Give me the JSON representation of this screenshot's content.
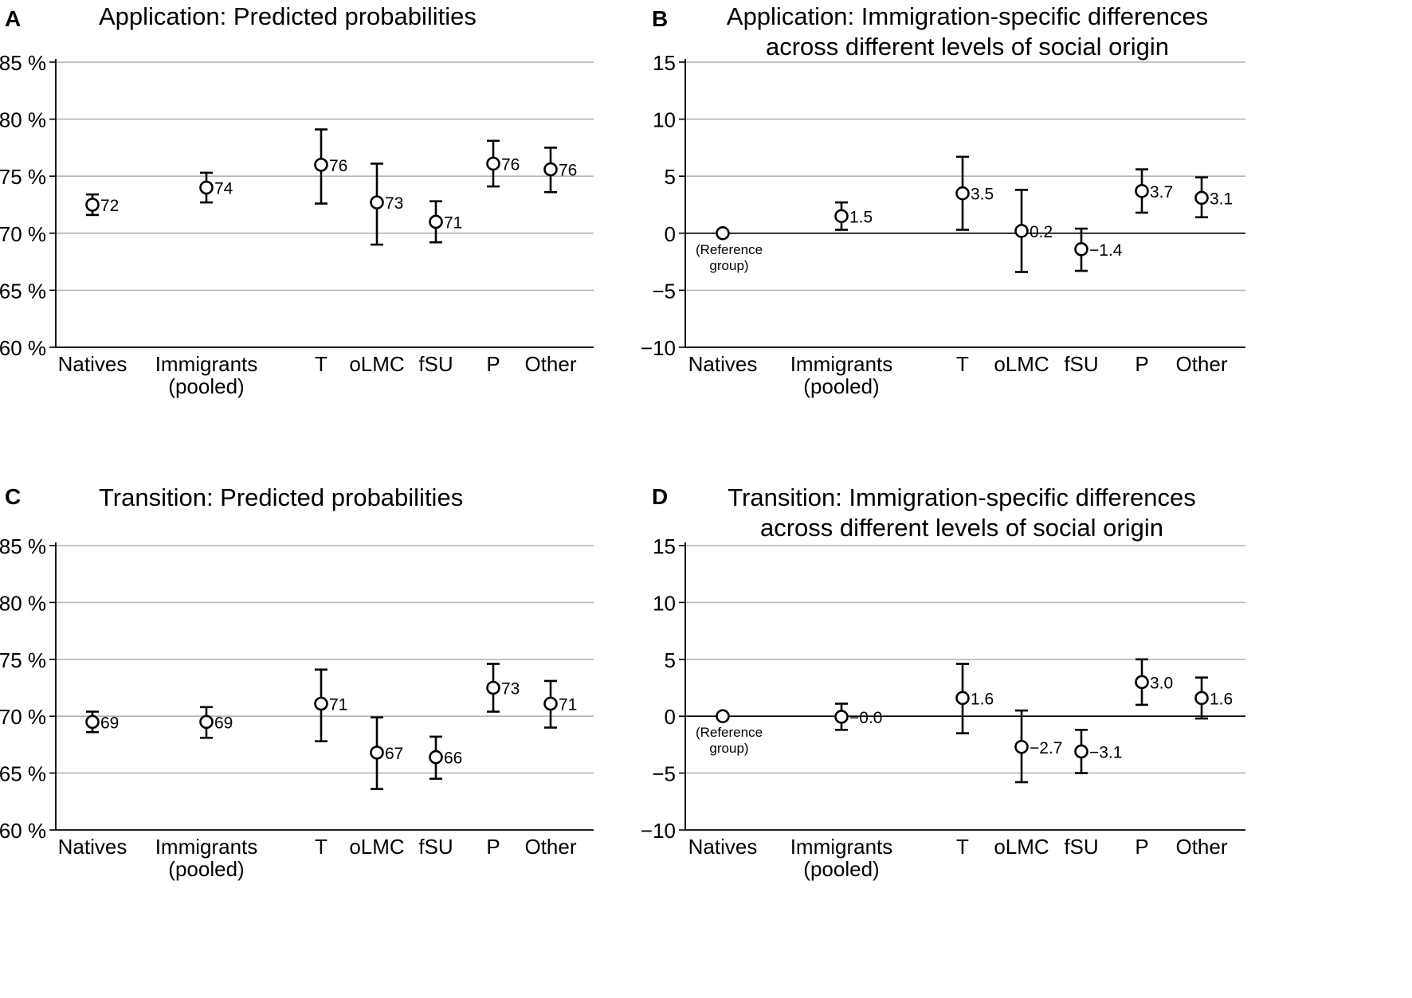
{
  "chart_data": [
    {
      "panel": "A",
      "type": "scatter",
      "subtype": "point-with-errorbars",
      "title": "Application: Predicted probabilities",
      "categories": [
        "Natives",
        "Immigrants\n(pooled)",
        "T",
        "oLMC",
        "fSU",
        "P",
        "Other"
      ],
      "values": [
        72.5,
        74.0,
        76.0,
        72.7,
        71.0,
        76.1,
        75.6
      ],
      "lower": [
        71.6,
        72.7,
        72.6,
        69.0,
        69.2,
        74.1,
        73.6
      ],
      "upper": [
        73.4,
        75.3,
        79.1,
        76.1,
        72.8,
        78.1,
        77.5
      ],
      "labels": [
        "72",
        "74",
        "76",
        "73",
        "71",
        "76",
        "76"
      ],
      "ylim": [
        60,
        85
      ],
      "yticks": [
        60,
        65,
        70,
        75,
        80,
        85
      ],
      "ytick_labels": [
        "60 %",
        "65 %",
        "70 %",
        "75 %",
        "80 %",
        "85 %"
      ],
      "grid": true,
      "zero_line": false,
      "xlabel": "",
      "ylabel": ""
    },
    {
      "panel": "B",
      "type": "scatter",
      "subtype": "point-with-errorbars",
      "title": "Application: Immigration-specific differences\nacross different levels of social origin",
      "categories": [
        "Natives",
        "Immigrants\n(pooled)",
        "T",
        "oLMC",
        "fSU",
        "P",
        "Other"
      ],
      "values": [
        0,
        1.5,
        3.5,
        0.2,
        -1.4,
        3.7,
        3.1
      ],
      "lower": [
        null,
        0.3,
        0.3,
        -3.4,
        -3.3,
        1.8,
        1.4
      ],
      "upper": [
        null,
        2.7,
        6.7,
        3.8,
        0.4,
        5.6,
        4.9
      ],
      "labels": [
        "(Reference\ngroup)",
        "1.5",
        "3.5",
        "0.2",
        "−1.4",
        "3.7",
        "3.1"
      ],
      "ylim": [
        -10,
        15
      ],
      "yticks": [
        -10,
        -5,
        0,
        5,
        10,
        15
      ],
      "ytick_labels": [
        "−10",
        "−5",
        "0",
        "5",
        "10",
        "15"
      ],
      "grid": true,
      "zero_line": true,
      "xlabel": "",
      "ylabel": ""
    },
    {
      "panel": "C",
      "type": "scatter",
      "subtype": "point-with-errorbars",
      "title": "Transition: Predicted probabilities",
      "categories": [
        "Natives",
        "Immigrants\n(pooled)",
        "T",
        "oLMC",
        "fSU",
        "P",
        "Other"
      ],
      "values": [
        69.5,
        69.5,
        71.1,
        66.8,
        66.4,
        72.5,
        71.1
      ],
      "lower": [
        68.6,
        68.1,
        67.8,
        63.6,
        64.5,
        70.4,
        69.0
      ],
      "upper": [
        70.4,
        70.8,
        74.1,
        69.9,
        68.2,
        74.6,
        73.1
      ],
      "labels": [
        "69",
        "69",
        "71",
        "67",
        "66",
        "73",
        "71"
      ],
      "ylim": [
        60,
        85
      ],
      "yticks": [
        60,
        65,
        70,
        75,
        80,
        85
      ],
      "ytick_labels": [
        "60 %",
        "65 %",
        "70 %",
        "75 %",
        "80 %",
        "85 %"
      ],
      "grid": true,
      "zero_line": false,
      "xlabel": "",
      "ylabel": ""
    },
    {
      "panel": "D",
      "type": "scatter",
      "subtype": "point-with-errorbars",
      "title": "Transition: Immigration-specific differences\nacross different levels of social origin",
      "categories": [
        "Natives",
        "Immigrants\n(pooled)",
        "T",
        "oLMC",
        "fSU",
        "P",
        "Other"
      ],
      "values": [
        0,
        -0.05,
        1.6,
        -2.7,
        -3.1,
        3.0,
        1.6
      ],
      "lower": [
        null,
        -1.2,
        -1.5,
        -5.8,
        -5.0,
        1.0,
        -0.2
      ],
      "upper": [
        null,
        1.1,
        4.6,
        0.5,
        -1.2,
        5.0,
        3.4
      ],
      "labels": [
        "(Reference\ngroup)",
        "−0.0",
        "1.6",
        "−2.7",
        "−3.1",
        "3.0",
        "1.6"
      ],
      "ylim": [
        -10,
        15
      ],
      "yticks": [
        -10,
        -5,
        0,
        5,
        10,
        15
      ],
      "ytick_labels": [
        "−10",
        "−5",
        "0",
        "5",
        "10",
        "15"
      ],
      "grid": true,
      "zero_line": true,
      "xlabel": "",
      "ylabel": ""
    }
  ]
}
